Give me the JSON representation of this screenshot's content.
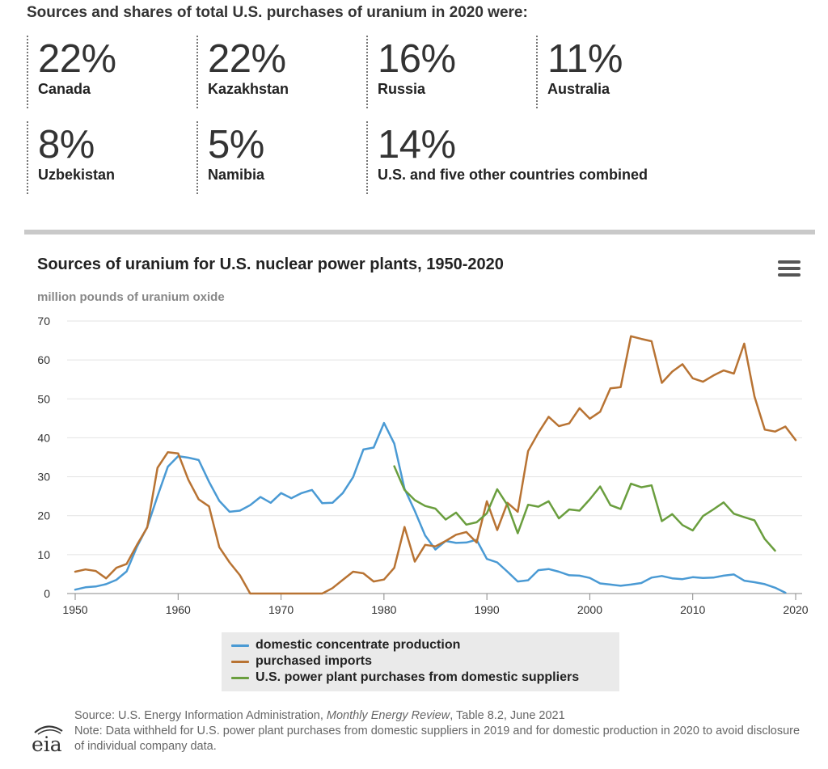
{
  "heading": "Sources and shares of total U.S. purchases of uranium in 2020 were:",
  "stats": [
    {
      "pct": "22%",
      "country": "Canada"
    },
    {
      "pct": "22%",
      "country": "Kazakhstan"
    },
    {
      "pct": "16%",
      "country": "Russia"
    },
    {
      "pct": "11%",
      "country": "Australia"
    },
    {
      "pct": "8%",
      "country": "Uzbekistan"
    },
    {
      "pct": "5%",
      "country": "Namibia"
    },
    {
      "pct": "14%",
      "country": "U.S. and five other countries combined"
    }
  ],
  "source": {
    "prefix": "Source: U.S. Energy Information Administration, ",
    "publication": "Monthly Energy Review",
    "suffix": ", Table 8.2, June 2021",
    "note": "Note: Data withheld for U.S. power plant purchases from domestic suppliers in 2019 and for domestic production in 2020 to avoid disclosure of individual company data."
  },
  "logo": {
    "text": "eia"
  },
  "chart_data": {
    "type": "line",
    "title": "Sources of uranium for U.S. nuclear power plants, 1950-2020",
    "subtitle": "million pounds of uranium oxide",
    "xlim": [
      1950,
      2020
    ],
    "ylim": [
      0,
      70
    ],
    "x_ticks": [
      1950,
      1960,
      1970,
      1980,
      1990,
      2000,
      2010,
      2020
    ],
    "y_ticks": [
      0,
      10,
      20,
      30,
      40,
      50,
      60,
      70
    ],
    "grid": true,
    "legend_position": "bottom-center",
    "series": [
      {
        "name": "domestic concentrate production",
        "color": "#4a9ad4",
        "x": [
          1950,
          1951,
          1952,
          1953,
          1954,
          1955,
          1956,
          1957,
          1958,
          1959,
          1960,
          1961,
          1962,
          1963,
          1964,
          1965,
          1966,
          1967,
          1968,
          1969,
          1970,
          1971,
          1972,
          1973,
          1974,
          1975,
          1976,
          1977,
          1978,
          1979,
          1980,
          1981,
          1982,
          1983,
          1984,
          1985,
          1986,
          1987,
          1988,
          1989,
          1990,
          1991,
          1992,
          1993,
          1994,
          1995,
          1996,
          1997,
          1998,
          1999,
          2000,
          2001,
          2002,
          2003,
          2004,
          2005,
          2006,
          2007,
          2008,
          2009,
          2010,
          2011,
          2012,
          2013,
          2014,
          2015,
          2016,
          2017,
          2018,
          2019
        ],
        "y": [
          1.0,
          1.6,
          1.8,
          2.4,
          3.5,
          5.7,
          12.0,
          17.1,
          25.0,
          32.6,
          35.3,
          34.9,
          34.3,
          28.7,
          23.8,
          21.0,
          21.3,
          22.7,
          24.8,
          23.3,
          25.8,
          24.5,
          25.8,
          26.6,
          23.2,
          23.3,
          25.8,
          29.9,
          37.0,
          37.5,
          43.8,
          38.5,
          26.9,
          21.2,
          14.9,
          11.3,
          13.5,
          13.0,
          13.1,
          13.8,
          8.9,
          8.0,
          5.6,
          3.1,
          3.4,
          6.0,
          6.3,
          5.6,
          4.7,
          4.6,
          4.0,
          2.6,
          2.3,
          2.0,
          2.3,
          2.7,
          4.1,
          4.5,
          3.9,
          3.7,
          4.2,
          4.0,
          4.1,
          4.6,
          4.9,
          3.3,
          2.9,
          2.4,
          1.5,
          0.2
        ]
      },
      {
        "name": "purchased imports",
        "color": "#b87333",
        "x": [
          1950,
          1951,
          1952,
          1953,
          1954,
          1955,
          1956,
          1957,
          1958,
          1959,
          1960,
          1961,
          1962,
          1963,
          1964,
          1965,
          1966,
          1967,
          1968,
          1969,
          1970,
          1971,
          1972,
          1973,
          1974,
          1975,
          1976,
          1977,
          1978,
          1979,
          1980,
          1981,
          1982,
          1983,
          1984,
          1985,
          1986,
          1987,
          1988,
          1989,
          1990,
          1991,
          1992,
          1993,
          1994,
          1995,
          1996,
          1997,
          1998,
          1999,
          2000,
          2001,
          2002,
          2003,
          2004,
          2005,
          2006,
          2007,
          2008,
          2009,
          2010,
          2011,
          2012,
          2013,
          2014,
          2015,
          2016,
          2017,
          2018,
          2019,
          2020
        ],
        "y": [
          5.6,
          6.2,
          5.8,
          3.9,
          6.6,
          7.6,
          12.5,
          17.0,
          32.3,
          36.3,
          36.0,
          29.2,
          24.2,
          22.4,
          11.9,
          8.0,
          4.7,
          0.0,
          0.0,
          0.0,
          0.0,
          0.0,
          0.0,
          0.0,
          0.0,
          1.4,
          3.5,
          5.6,
          5.2,
          3.1,
          3.6,
          6.6,
          17.1,
          8.2,
          12.5,
          12.1,
          13.5,
          15.1,
          15.8,
          13.1,
          23.7,
          16.3,
          23.3,
          21.0,
          36.6,
          41.3,
          45.4,
          43.0,
          43.7,
          47.6,
          44.9,
          46.7,
          52.7,
          53.0,
          66.1,
          65.4,
          64.8,
          54.1,
          57.0,
          58.9,
          55.3,
          54.4,
          56.0,
          57.3,
          56.5,
          64.2,
          50.6,
          42.1,
          41.6,
          42.9,
          39.4
        ]
      },
      {
        "name": "U.S. power plant purchases from domestic suppliers",
        "color": "#6a9e3e",
        "x": [
          1981,
          1982,
          1983,
          1984,
          1985,
          1986,
          1987,
          1988,
          1989,
          1990,
          1991,
          1992,
          1993,
          1994,
          1995,
          1996,
          1997,
          1998,
          1999,
          2000,
          2001,
          2002,
          2003,
          2004,
          2005,
          2006,
          2007,
          2008,
          2009,
          2010,
          2011,
          2012,
          2013,
          2014,
          2015,
          2016,
          2017,
          2018
        ],
        "y": [
          32.7,
          26.6,
          24.0,
          22.5,
          21.8,
          19.0,
          20.8,
          17.7,
          18.3,
          20.6,
          26.8,
          22.7,
          15.5,
          22.8,
          22.3,
          23.7,
          19.3,
          21.6,
          21.3,
          24.2,
          27.5,
          22.7,
          21.7,
          28.2,
          27.3,
          27.8,
          18.6,
          20.4,
          17.6,
          16.2,
          19.9,
          21.6,
          23.4,
          20.5,
          19.6,
          18.8,
          14.0,
          11.0
        ]
      }
    ]
  }
}
